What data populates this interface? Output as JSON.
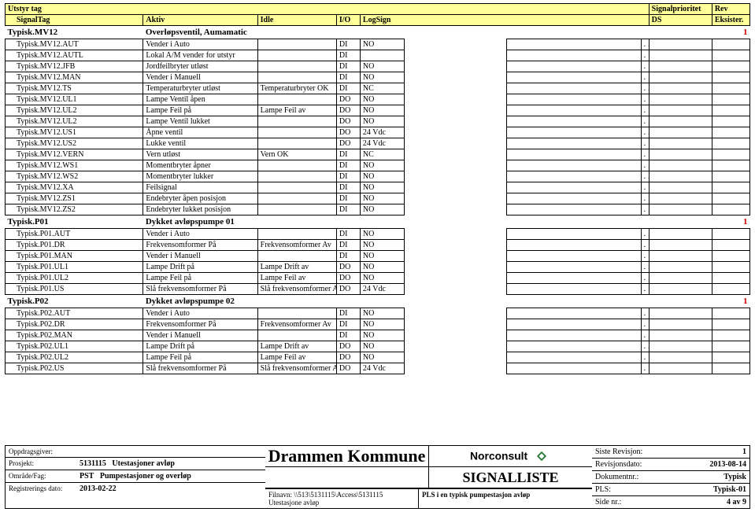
{
  "header": {
    "row1": {
      "utstyr_tag": "Utstyr tag",
      "signalprioritet": "Signalprioritet",
      "rev": "Rev"
    },
    "row2": {
      "signaltag": "SignalTag",
      "aktiv": "Aktiv",
      "idle": "Idle",
      "io": "I/O",
      "logsign": "LogSign",
      "ds": "DS",
      "eksister": "Eksister."
    }
  },
  "groups": [
    {
      "tag": "Typisk.MV12",
      "desc": "Overløpsventil, Aumamatic",
      "count": "1",
      "rows": [
        {
          "tag": "Typisk.MV12.AUT",
          "aktiv": "Vender i Auto",
          "idle": "",
          "io": "DI",
          "log": "NO",
          "dot": "."
        },
        {
          "tag": "Typisk.MV12.AUTL",
          "aktiv": "Lokal A/M vender for utstyr",
          "idle": "",
          "io": "DI",
          "log": "",
          "dot": "."
        },
        {
          "tag": "Typisk.MV12.JFB",
          "aktiv": "Jordfeilbryter utløst",
          "idle": "",
          "io": "DI",
          "log": "NO",
          "dot": "."
        },
        {
          "tag": "Typisk.MV12.MAN",
          "aktiv": "Vender i Manuell",
          "idle": "",
          "io": "DI",
          "log": "NO",
          "dot": "."
        },
        {
          "tag": "Typisk.MV12.TS",
          "aktiv": "Temperaturbryter utløst",
          "idle": "Temperaturbryter OK",
          "io": "DI",
          "log": "NC",
          "dot": "."
        },
        {
          "tag": "Typisk.MV12.UL1",
          "aktiv": "Lampe Ventil åpen",
          "idle": "",
          "io": "DO",
          "log": "NO",
          "dot": "."
        },
        {
          "tag": "Typisk.MV12.UL2",
          "aktiv": "Lampe Feil på",
          "idle": "Lampe Feil av",
          "io": "DO",
          "log": "NO",
          "dot": "."
        },
        {
          "tag": "Typisk.MV12.UL2",
          "aktiv": "Lampe Ventil lukket",
          "idle": "",
          "io": "DO",
          "log": "NO",
          "dot": "."
        },
        {
          "tag": "Typisk.MV12.US1",
          "aktiv": "Åpne ventil",
          "idle": "",
          "io": "DO",
          "log": "24 Vdc",
          "dot": "."
        },
        {
          "tag": "Typisk.MV12.US2",
          "aktiv": "Lukke ventil",
          "idle": "",
          "io": "DO",
          "log": "24 Vdc",
          "dot": "."
        },
        {
          "tag": "Typisk.MV12.VERN",
          "aktiv": "Vern utløst",
          "idle": "Vern OK",
          "io": "DI",
          "log": "NC",
          "dot": "."
        },
        {
          "tag": "Typisk.MV12.WS1",
          "aktiv": "Momentbryter åpner",
          "idle": "",
          "io": "DI",
          "log": "NO",
          "dot": "."
        },
        {
          "tag": "Typisk.MV12.WS2",
          "aktiv": "Momentbryter lukker",
          "idle": "",
          "io": "DI",
          "log": "NO",
          "dot": "."
        },
        {
          "tag": "Typisk.MV12.XA",
          "aktiv": "Feilsignal",
          "idle": "",
          "io": "DI",
          "log": "NO",
          "dot": "."
        },
        {
          "tag": "Typisk.MV12.ZS1",
          "aktiv": "Endebryter åpen posisjon",
          "idle": "",
          "io": "DI",
          "log": "NO",
          "dot": "."
        },
        {
          "tag": "Typisk.MV12.ZS2",
          "aktiv": "Endebryter lukket posisjon",
          "idle": "",
          "io": "DI",
          "log": "NO",
          "dot": "."
        }
      ]
    },
    {
      "tag": "Typisk.P01",
      "desc": "Dykket avløpspumpe 01",
      "count": "1",
      "rows": [
        {
          "tag": "Typisk.P01.AUT",
          "aktiv": "Vender i Auto",
          "idle": "",
          "io": "DI",
          "log": "NO",
          "dot": "."
        },
        {
          "tag": "Typisk.P01.DR",
          "aktiv": "Frekvensomformer På",
          "idle": "Frekvensomformer Av",
          "io": "DI",
          "log": "NO",
          "dot": "."
        },
        {
          "tag": "Typisk.P01.MAN",
          "aktiv": "Vender i Manuell",
          "idle": "",
          "io": "DI",
          "log": "NO",
          "dot": "."
        },
        {
          "tag": "Typisk.P01.UL1",
          "aktiv": "Lampe Drift på",
          "idle": "Lampe Drift av",
          "io": "DO",
          "log": "NO",
          "dot": "."
        },
        {
          "tag": "Typisk.P01.UL2",
          "aktiv": "Lampe Feil på",
          "idle": "Lampe Feil av",
          "io": "DO",
          "log": "NO",
          "dot": "."
        },
        {
          "tag": "Typisk.P01.US",
          "aktiv": "Slå frekvensomformer På",
          "idle": "Slå frekvensomformer Av",
          "io": "DO",
          "log": "24 Vdc",
          "dot": "."
        }
      ]
    },
    {
      "tag": "Typisk.P02",
      "desc": "Dykket avløpspumpe 02",
      "count": "1",
      "rows": [
        {
          "tag": "Typisk.P02.AUT",
          "aktiv": "Vender i Auto",
          "idle": "",
          "io": "DI",
          "log": "NO",
          "dot": "."
        },
        {
          "tag": "Typisk.P02.DR",
          "aktiv": "Frekvensomformer På",
          "idle": "Frekvensomformer Av",
          "io": "DI",
          "log": "NO",
          "dot": "."
        },
        {
          "tag": "Typisk.P02.MAN",
          "aktiv": "Vender i Manuell",
          "idle": "",
          "io": "DI",
          "log": "NO",
          "dot": "."
        },
        {
          "tag": "Typisk.P02.UL1",
          "aktiv": "Lampe Drift på",
          "idle": "Lampe Drift av",
          "io": "DO",
          "log": "NO",
          "dot": "."
        },
        {
          "tag": "Typisk.P02.UL2",
          "aktiv": "Lampe Feil på",
          "idle": "Lampe Feil av",
          "io": "DO",
          "log": "NO",
          "dot": "."
        },
        {
          "tag": "Typisk.P02.US",
          "aktiv": "Slå frekvensomformer På",
          "idle": "Slå frekvensomformer Av",
          "io": "DO",
          "log": "24 Vdc",
          "dot": "."
        }
      ]
    }
  ],
  "footer": {
    "oppdragsgiver_lbl": "Oppdragsgiver:",
    "prosjekt_lbl": "Prosjekt:",
    "prosjekt_nr": "5131115",
    "prosjekt_txt": "Utestasjoner avløp",
    "omrade_lbl": "Område/Fag:",
    "omrade_kode": "PST",
    "omrade_txt": "Pumpestasjoner og overløp",
    "reg_lbl": "Registrerings dato:",
    "reg_dato": "2013-02-22",
    "title": "Drammen Kommune",
    "logo_text": "Norconsult",
    "signalliste": "SIGNALLISTE",
    "filnavn_lbl": "Filnavn:",
    "filnavn": "\\\\513\\5131115\\Access\\5131115 Utestasjone avløp",
    "pls_txt": "PLS i en typisk pumpestasjon avløp",
    "siste_rev_lbl": "Siste Revisjon:",
    "siste_rev": "1",
    "rev_dato_lbl": "Revisjonsdato:",
    "rev_dato": "2013-08-14",
    "dok_lbl": "Dokumentnr.:",
    "dok": "Typisk",
    "pls_lbl": "PLS:",
    "pls": "Typisk-01",
    "side_lbl": "Side nr.:",
    "side": "4 av 9"
  }
}
